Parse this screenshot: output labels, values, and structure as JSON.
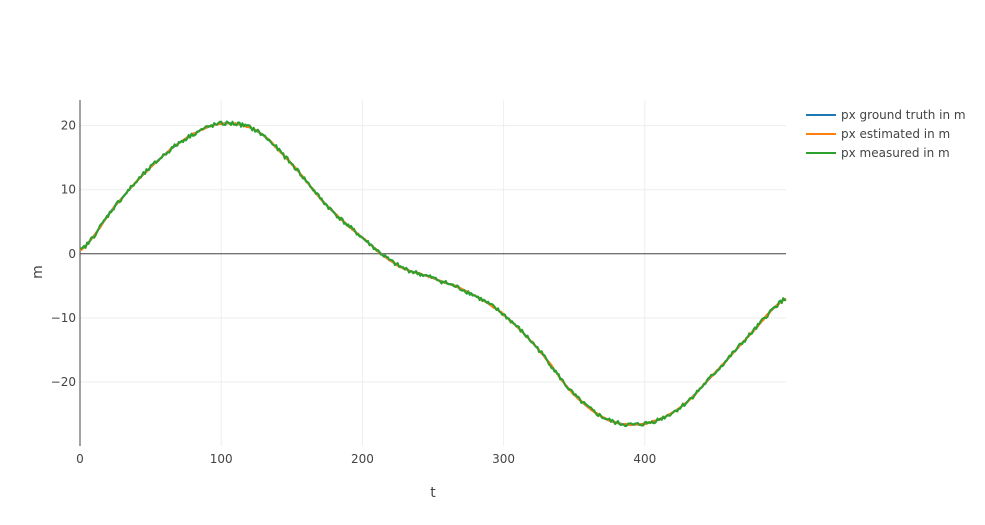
{
  "chart_data": {
    "type": "line",
    "xlabel": "t",
    "ylabel": "m",
    "xlim": [
      0,
      500
    ],
    "ylim": [
      -30,
      24
    ],
    "x_ticks": [
      0,
      100,
      200,
      300,
      400
    ],
    "x_tick_labels": [
      "0",
      "100",
      "200",
      "300",
      "400"
    ],
    "y_ticks": [
      20,
      10,
      0,
      -10,
      -20
    ],
    "y_tick_labels": [
      "20",
      "10",
      "0",
      "−10",
      "−20"
    ],
    "grid": true,
    "zero_line": true,
    "legend_position": "top-right",
    "x": [
      0,
      25,
      50,
      75,
      100,
      125,
      150,
      175,
      200,
      225,
      250,
      275,
      300,
      325,
      350,
      375,
      400,
      425,
      450,
      475,
      500
    ],
    "series": [
      {
        "name": "px ground truth in m",
        "color": "#1f77b4",
        "noise": 0,
        "values": [
          0.5,
          7.5,
          13.5,
          18.0,
          20.3,
          19.2,
          14.0,
          7.5,
          2.5,
          -1.8,
          -3.8,
          -6.0,
          -9.5,
          -15.0,
          -22.0,
          -26.0,
          -26.5,
          -24.0,
          -18.5,
          -12.5,
          -7.0
        ]
      },
      {
        "name": "px estimated in m",
        "color": "#ff7f0e",
        "noise": 0.12,
        "values": [
          0.5,
          7.5,
          13.5,
          18.0,
          20.3,
          19.2,
          14.0,
          7.5,
          2.5,
          -1.8,
          -3.8,
          -6.0,
          -9.5,
          -15.0,
          -22.0,
          -26.0,
          -26.5,
          -24.0,
          -18.5,
          -12.5,
          -7.0
        ]
      },
      {
        "name": "px measured in m",
        "color": "#2ca02c",
        "noise": 0.35,
        "values": [
          0.5,
          7.5,
          13.5,
          18.0,
          20.3,
          19.2,
          14.0,
          7.5,
          2.5,
          -1.8,
          -3.8,
          -6.0,
          -9.5,
          -15.0,
          -22.0,
          -26.0,
          -26.5,
          -24.0,
          -18.5,
          -12.5,
          -7.0
        ]
      }
    ]
  }
}
